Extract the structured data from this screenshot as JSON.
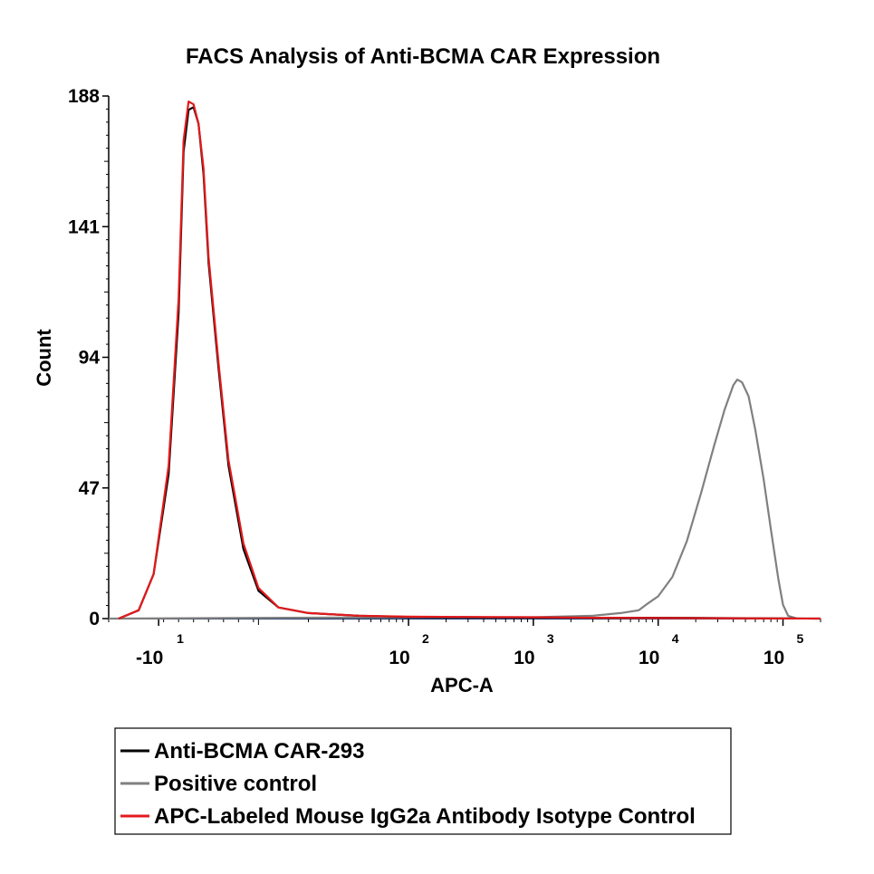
{
  "chart_data": {
    "type": "line",
    "title": "FACS Analysis of Anti-BCMA CAR Expression",
    "xlabel": "APC-A",
    "ylabel": "Count",
    "x_scale": "biexponential",
    "xlim": [
      -20,
      200000
    ],
    "ylim": [
      0,
      188
    ],
    "y_ticks": [
      0,
      47,
      94,
      141,
      188
    ],
    "x_ticks": [
      {
        "value": -10,
        "base": "-10",
        "exp": "1"
      },
      {
        "value": 100,
        "base": "10",
        "exp": "2"
      },
      {
        "value": 1000,
        "base": "10",
        "exp": "3"
      },
      {
        "value": 10000,
        "base": "10",
        "exp": "4"
      },
      {
        "value": 100000,
        "base": "10",
        "exp": "5"
      }
    ],
    "grid": false,
    "legend_position": "bottom",
    "series": [
      {
        "name": "Anti-BCMA CAR-293",
        "color": "#000000",
        "points": [
          [
            -18,
            0
          ],
          [
            -14,
            3
          ],
          [
            -11,
            16
          ],
          [
            -8,
            52
          ],
          [
            -6,
            110
          ],
          [
            -5,
            168
          ],
          [
            -4,
            183
          ],
          [
            -3,
            184
          ],
          [
            -2,
            178
          ],
          [
            -1,
            160
          ],
          [
            0,
            128
          ],
          [
            2,
            90
          ],
          [
            4,
            55
          ],
          [
            7,
            25
          ],
          [
            10,
            10
          ],
          [
            14,
            4
          ],
          [
            20,
            2
          ],
          [
            40,
            1
          ],
          [
            100,
            0.6
          ],
          [
            300,
            0.5
          ],
          [
            1000,
            0.4
          ],
          [
            3000,
            0.3
          ],
          [
            10000,
            0.3
          ],
          [
            200000,
            0
          ]
        ]
      },
      {
        "name": "Positive control",
        "color": "#808080",
        "points": [
          [
            -20,
            0
          ],
          [
            100,
            0.5
          ],
          [
            1000,
            0.5
          ],
          [
            3000,
            1
          ],
          [
            5000,
            2
          ],
          [
            7000,
            3
          ],
          [
            8000,
            5
          ],
          [
            10000,
            8
          ],
          [
            13000,
            15
          ],
          [
            17000,
            28
          ],
          [
            22000,
            45
          ],
          [
            28000,
            62
          ],
          [
            34000,
            75
          ],
          [
            40000,
            84
          ],
          [
            43000,
            86
          ],
          [
            47000,
            85
          ],
          [
            53000,
            80
          ],
          [
            60000,
            68
          ],
          [
            70000,
            50
          ],
          [
            80000,
            32
          ],
          [
            92000,
            14
          ],
          [
            100000,
            5
          ],
          [
            110000,
            1
          ],
          [
            130000,
            0
          ]
        ]
      },
      {
        "name": "APC-Labeled Mouse IgG2a Antibody Isotype Control",
        "color": "#e31a1c",
        "points": [
          [
            -18,
            0
          ],
          [
            -14,
            3
          ],
          [
            -11,
            16
          ],
          [
            -8,
            55
          ],
          [
            -6,
            115
          ],
          [
            -5,
            172
          ],
          [
            -4,
            186
          ],
          [
            -3,
            185
          ],
          [
            -2,
            178
          ],
          [
            -1,
            162
          ],
          [
            0,
            130
          ],
          [
            2,
            92
          ],
          [
            4,
            57
          ],
          [
            7,
            27
          ],
          [
            10,
            11
          ],
          [
            14,
            4
          ],
          [
            20,
            2
          ],
          [
            40,
            1
          ],
          [
            100,
            0.7
          ],
          [
            300,
            0.6
          ],
          [
            1000,
            0.5
          ],
          [
            3000,
            0.3
          ],
          [
            10000,
            0.2
          ],
          [
            200000,
            0
          ]
        ]
      }
    ]
  }
}
